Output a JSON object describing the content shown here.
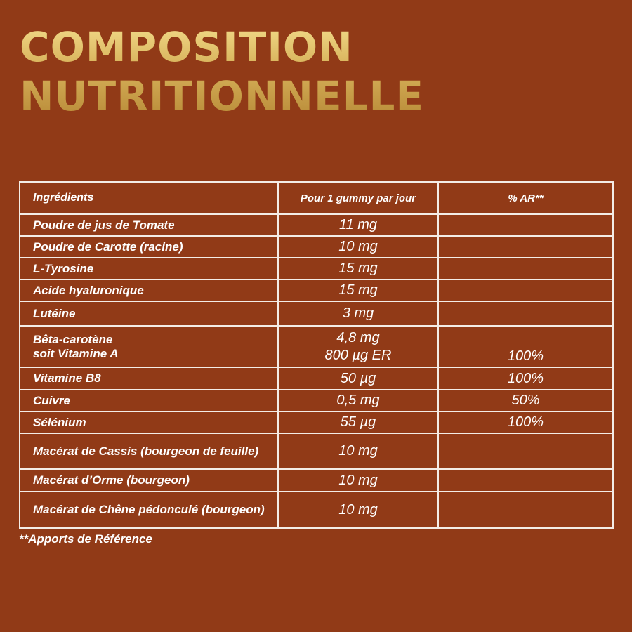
{
  "header": {
    "title": [
      "COMPOSITION",
      "NUTRITIONNELLE"
    ]
  },
  "table": {
    "columns": [
      "Ingrédients",
      "Pour 1 gummy par jour",
      "% AR**"
    ],
    "rows": [
      {
        "ingredient": [
          "Poudre de jus de Tomate"
        ],
        "amount": [
          "11 mg"
        ]
      },
      {
        "ingredient": [
          "Poudre de Carotte (racine)"
        ],
        "amount": [
          "10 mg"
        ]
      },
      {
        "ingredient": [
          "L-Tyrosine"
        ],
        "amount": [
          "15 mg"
        ]
      },
      {
        "ingredient": [
          "Acide hyaluronique"
        ],
        "amount": [
          "15 mg"
        ]
      },
      {
        "ingredient": [
          "Lutéine"
        ],
        "amount": [
          "3 mg"
        ]
      },
      {
        "ingredient": [
          "Bêta-carotène",
          "soit Vitamine A"
        ],
        "amount": [
          "4,8 mg",
          "800 µg ER"
        ],
        "ar": "100%"
      },
      {
        "ingredient": [
          "Vitamine B8"
        ],
        "amount": [
          "50 µg"
        ],
        "ar": "100%"
      },
      {
        "ingredient": [
          "Cuivre"
        ],
        "amount": [
          "0,5 mg"
        ],
        "ar": "50%"
      },
      {
        "ingredient": [
          "Sélénium"
        ],
        "amount": [
          "55 µg"
        ],
        "ar": "100%"
      },
      {
        "ingredient": [
          "Macérat de Cassis (bourgeon de feuille)"
        ],
        "amount": [
          "10 mg"
        ]
      },
      {
        "ingredient": [
          "Macérat d’Orme (bourgeon)"
        ],
        "amount": [
          "10 mg"
        ]
      },
      {
        "ingredient": [
          "Macérat de Chêne pédonculé (bourgeon)"
        ],
        "amount": [
          "10 mg"
        ]
      }
    ]
  },
  "footnote": "**Apports de Référence"
}
